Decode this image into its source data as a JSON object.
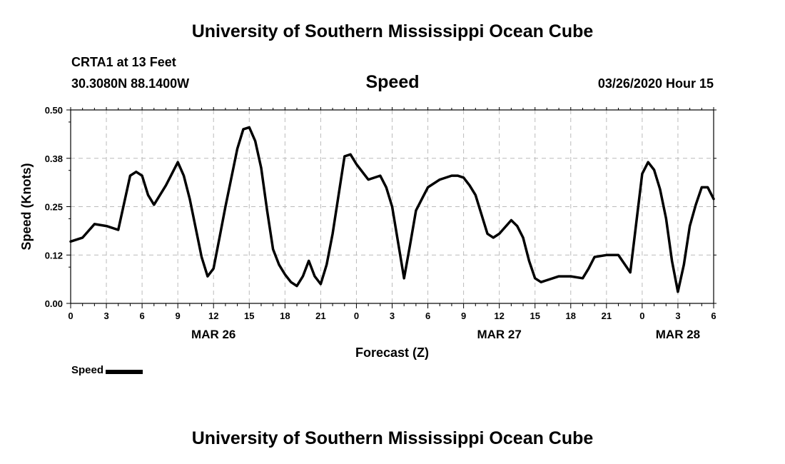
{
  "header": {
    "title": "University of Southern Mississippi Ocean Cube",
    "station": "CRTA1 at 13 Feet",
    "coords": "30.3080N 88.1400W",
    "timestamp": "03/26/2020 Hour 15"
  },
  "footer": {
    "title": "University of Southern Mississippi Ocean Cube"
  },
  "chart_data": {
    "type": "line",
    "title": "Speed",
    "xlabel": "Forecast (Z)",
    "ylabel": "Speed (Knots)",
    "ylim": [
      0,
      0.5
    ],
    "yticks": [
      "0.00",
      "0.12",
      "0.25",
      "0.38",
      "0.50"
    ],
    "xlim": [
      0,
      54
    ],
    "xticks": [
      "0",
      "3",
      "6",
      "9",
      "12",
      "15",
      "18",
      "21",
      "0",
      "3",
      "6",
      "9",
      "12",
      "15",
      "18",
      "21",
      "0",
      "3",
      "6"
    ],
    "date_labels": [
      {
        "label": "MAR 26",
        "hour": 12
      },
      {
        "label": "MAR 27",
        "hour": 36
      },
      {
        "label": "MAR 28",
        "hour": 51
      }
    ],
    "grid": true,
    "legend": "bottom-left",
    "line_color": "#000000",
    "series": [
      {
        "name": "Speed",
        "x": [
          0,
          1,
          2,
          3,
          4,
          5,
          5.5,
          6,
          6.5,
          7,
          8,
          9,
          9.5,
          10,
          11,
          11.5,
          12,
          12.5,
          13,
          14,
          14.5,
          15,
          15.5,
          16,
          16.5,
          17,
          17.5,
          18,
          18.5,
          19,
          19.5,
          20,
          20.5,
          21,
          21.5,
          22,
          23,
          23.5,
          24,
          25,
          26,
          26.5,
          27,
          28,
          28.5,
          29,
          29.5,
          30,
          31,
          32,
          32.5,
          33,
          33.5,
          34,
          35,
          35.5,
          36,
          37,
          37.5,
          38,
          38.5,
          39,
          39.5,
          40,
          41,
          42,
          43,
          43.5,
          44,
          45,
          46,
          47,
          48,
          48.5,
          49,
          49.5,
          50,
          50.5,
          51,
          51.5,
          52,
          52.5,
          53,
          53.5,
          54
        ],
        "y": [
          0.16,
          0.17,
          0.205,
          0.2,
          0.19,
          0.33,
          0.34,
          0.33,
          0.28,
          0.255,
          0.305,
          0.365,
          0.33,
          0.27,
          0.12,
          0.07,
          0.09,
          0.17,
          0.25,
          0.4,
          0.45,
          0.455,
          0.42,
          0.35,
          0.24,
          0.14,
          0.1,
          0.075,
          0.055,
          0.045,
          0.07,
          0.11,
          0.07,
          0.05,
          0.1,
          0.18,
          0.38,
          0.385,
          0.36,
          0.32,
          0.33,
          0.3,
          0.25,
          0.065,
          0.15,
          0.24,
          0.27,
          0.3,
          0.32,
          0.33,
          0.33,
          0.325,
          0.305,
          0.28,
          0.18,
          0.17,
          0.18,
          0.215,
          0.2,
          0.17,
          0.11,
          0.065,
          0.055,
          0.06,
          0.07,
          0.07,
          0.065,
          0.09,
          0.12,
          0.125,
          0.125,
          0.08,
          0.335,
          0.365,
          0.345,
          0.295,
          0.22,
          0.11,
          0.03,
          0.1,
          0.2,
          0.255,
          0.3,
          0.3,
          0.27
        ]
      }
    ]
  }
}
